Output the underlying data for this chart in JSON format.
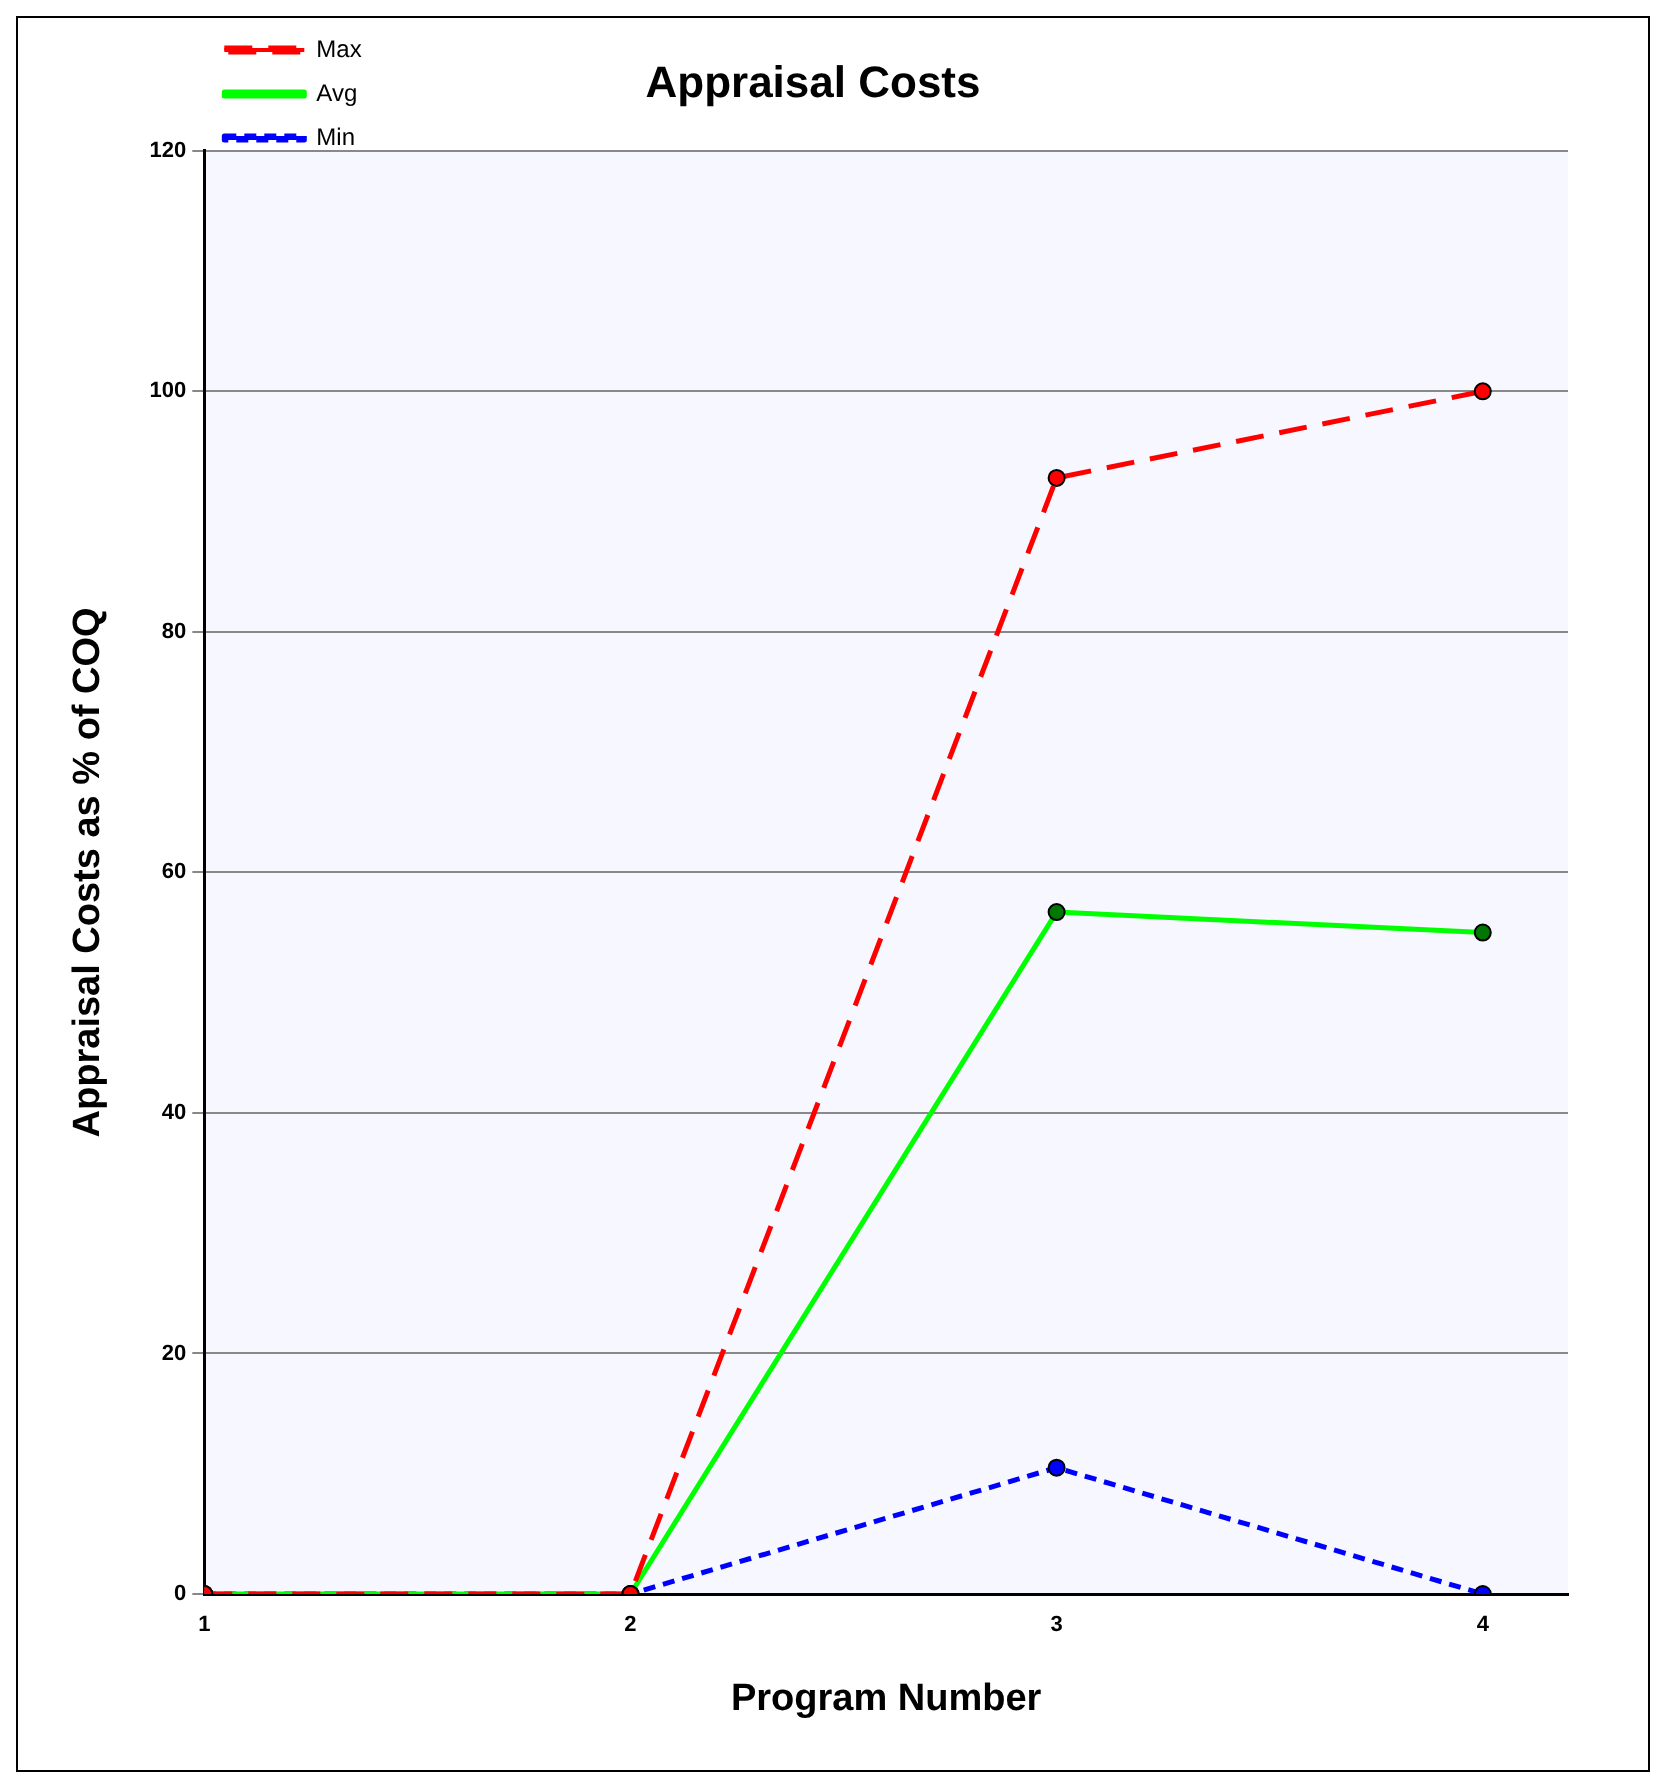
{
  "chart_data": {
    "type": "line",
    "title": "Appraisal Costs",
    "xlabel": "Program Number",
    "ylabel": "Appraisal Costs as % of COQ",
    "x": [
      1,
      2,
      3,
      4
    ],
    "xlim": [
      1,
      4.2
    ],
    "xticks": [
      1,
      2,
      3,
      4
    ],
    "ylim": [
      0,
      120
    ],
    "yticks": [
      0,
      20,
      40,
      60,
      80,
      100,
      120
    ],
    "series": [
      {
        "name": "Max",
        "color": "#ff0000",
        "values": [
          0,
          0,
          92.8,
          100
        ],
        "line_style": "dashed"
      },
      {
        "name": "Avg",
        "color": "#00ff00",
        "values": [
          0,
          0,
          56.7,
          55
        ],
        "line_style": "solid"
      },
      {
        "name": "Min",
        "color": "#0000ff",
        "values": [
          0,
          0,
          10.5,
          0
        ],
        "line_style": "dotted"
      }
    ],
    "marker": "circle",
    "grid": "y",
    "legend": "top left"
  }
}
